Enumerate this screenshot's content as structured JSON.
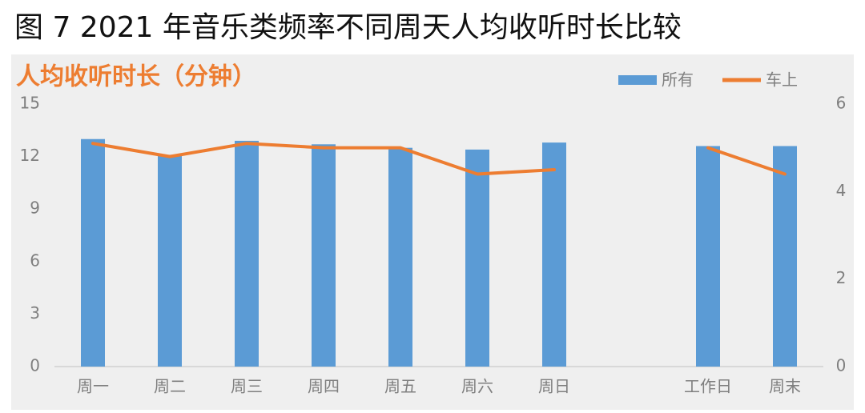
{
  "chart_data": {
    "type": "bar-line",
    "title": "图 7 2021 年音乐类频率不同周天人均收听时长比较",
    "subtitle": "人均收听时长（分钟）",
    "categories": [
      "周一",
      "周二",
      "周三",
      "周四",
      "周五",
      "周六",
      "周日",
      null,
      "工作日",
      "周末"
    ],
    "series": [
      {
        "name": "所有",
        "type": "bar",
        "color": "#5b9bd5",
        "values": [
          13.0,
          12.1,
          12.9,
          12.7,
          12.5,
          12.4,
          12.8,
          null,
          12.6,
          12.6
        ]
      },
      {
        "name": "车上",
        "type": "line",
        "axis": "y2",
        "color": "#ed7d31",
        "values": [
          5.1,
          4.8,
          5.1,
          5.0,
          5.0,
          4.4,
          4.5,
          null,
          5.0,
          4.4
        ]
      }
    ],
    "ylim": [
      0,
      15
    ],
    "yticks": [
      0,
      3,
      6,
      9,
      12,
      15
    ],
    "y2lim": [
      0,
      6
    ],
    "y2ticks": [
      0,
      2,
      4,
      6
    ],
    "grid": false,
    "legend": "top-right"
  }
}
